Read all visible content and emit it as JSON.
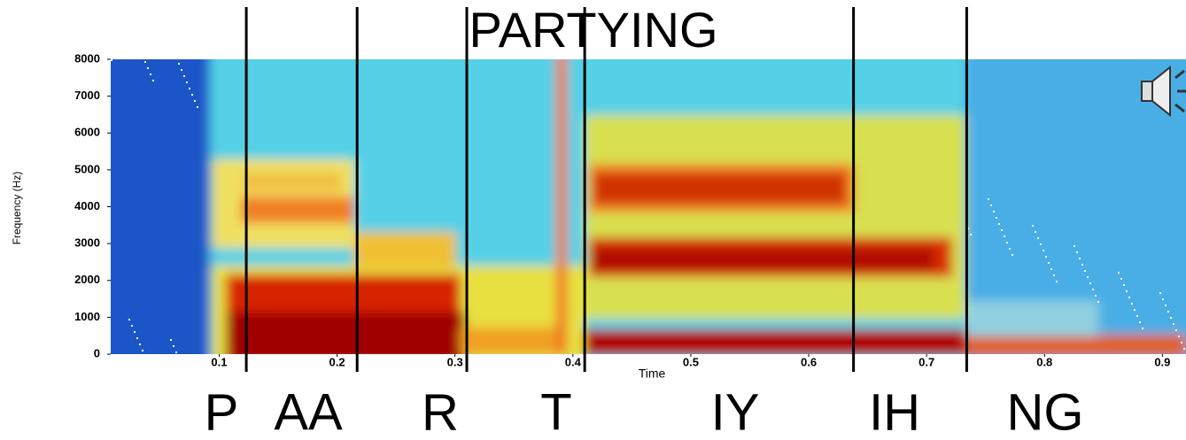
{
  "chart_data": {
    "type": "spectrogram",
    "title": "PARTYING",
    "xlabel": "Time",
    "ylabel": "Frequency (Hz)",
    "xlim": [
      0.008,
      0.92
    ],
    "ylim": [
      0,
      8000
    ],
    "xticks": [
      0.1,
      0.2,
      0.3,
      0.4,
      0.5,
      0.6,
      0.7,
      0.8,
      0.9
    ],
    "yticks": [
      0,
      1000,
      2000,
      3000,
      4000,
      5000,
      6000,
      7000,
      8000
    ],
    "boundaries": [
      0.123,
      0.217,
      0.31,
      0.41,
      0.638,
      0.734
    ],
    "phonemes": [
      "P",
      "AA",
      "R",
      "T",
      "IY",
      "IH",
      "NG"
    ]
  }
}
